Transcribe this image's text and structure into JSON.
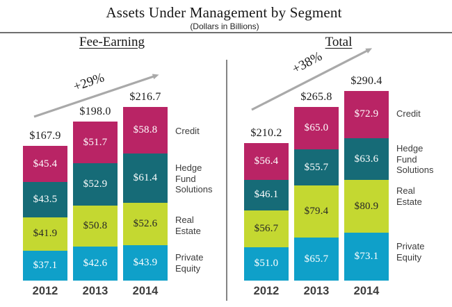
{
  "header": {
    "title": "Assets Under Management by Segment",
    "subtitle": "(Dollars in Billions)"
  },
  "chart_data": [
    {
      "type": "bar",
      "stacked": true,
      "group": "Fee-Earning",
      "growth_annotation": "+29%",
      "value_prefix": "$",
      "categories": [
        "2012",
        "2013",
        "2014"
      ],
      "series": [
        {
          "name": "Private Equity",
          "color": "#0fa0c9",
          "label_color": "#ffffff",
          "values": [
            37.1,
            42.6,
            43.9
          ]
        },
        {
          "name": "Real Estate",
          "color": "#c4d831",
          "label_color": "#262626",
          "values": [
            41.9,
            50.8,
            52.6
          ]
        },
        {
          "name": "Hedge Fund Solutions",
          "color": "#166b77",
          "label_color": "#ffffff",
          "values": [
            43.5,
            52.9,
            61.4
          ]
        },
        {
          "name": "Credit",
          "color": "#b92465",
          "label_color": "#ffffff",
          "values": [
            45.4,
            51.7,
            58.8
          ]
        }
      ],
      "totals": [
        167.9,
        198.0,
        216.7
      ],
      "legend_position": "right"
    },
    {
      "type": "bar",
      "stacked": true,
      "group": "Total",
      "growth_annotation": "+38%",
      "value_prefix": "$",
      "categories": [
        "2012",
        "2013",
        "2014"
      ],
      "series": [
        {
          "name": "Private Equity",
          "color": "#0fa0c9",
          "label_color": "#ffffff",
          "values": [
            51.0,
            65.7,
            73.1
          ]
        },
        {
          "name": "Real Estate",
          "color": "#c4d831",
          "label_color": "#262626",
          "values": [
            56.7,
            79.4,
            80.9
          ]
        },
        {
          "name": "Hedge Fund Solutions",
          "color": "#166b77",
          "label_color": "#ffffff",
          "values": [
            46.1,
            55.7,
            63.6
          ]
        },
        {
          "name": "Credit",
          "color": "#b92465",
          "label_color": "#ffffff",
          "values": [
            56.4,
            65.0,
            72.9
          ]
        }
      ],
      "totals": [
        210.2,
        265.8,
        290.4
      ],
      "legend_position": "right"
    }
  ],
  "colors": {
    "arrow": "#a9a9a9",
    "rule": "#6f6f6f",
    "divider": "#848484"
  }
}
